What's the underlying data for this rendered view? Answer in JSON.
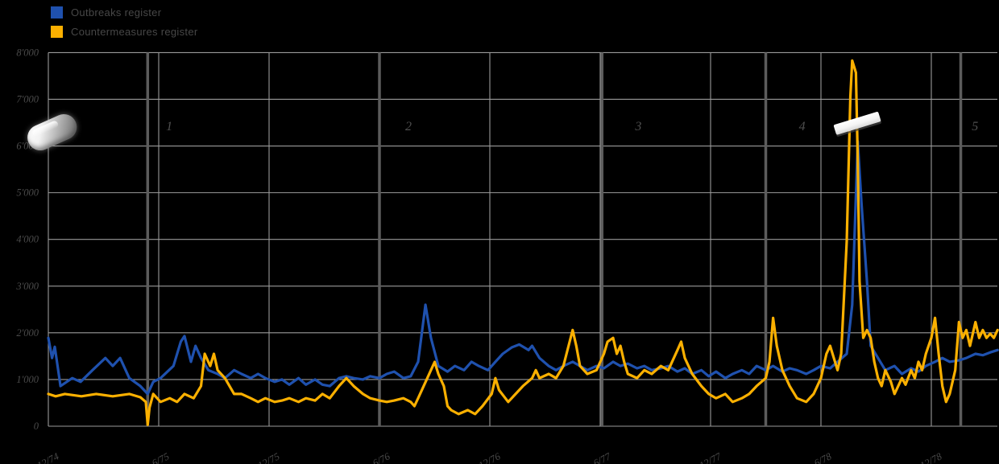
{
  "legend": {
    "items": [
      {
        "label": "Outbreaks register",
        "color": "#1F51AE"
      },
      {
        "label": "Countermeasures register",
        "color": "#FBB000"
      }
    ]
  },
  "colors": {
    "background": "#000000",
    "grid": "#9A9A9A",
    "annotation_line": "#5C5C5C",
    "tick_text": "#4A4A4A",
    "series_blue": "#1F51AE",
    "series_yellow": "#FBB000"
  },
  "chart_data": {
    "type": "line",
    "title": "",
    "xlabel": "",
    "ylabel": "",
    "x_unit": "months since 12/74",
    "x_axis": {
      "tick_months": [
        0,
        6,
        12,
        18,
        24,
        30,
        36,
        42,
        48
      ],
      "tick_labels": [
        "12/74",
        "6/75",
        "12/75",
        "6/76",
        "12/76",
        "6/77",
        "12/77",
        "6/78",
        "12/78"
      ]
    },
    "y_axis": {
      "min": 0,
      "max": 8000,
      "step": 1000,
      "tick_values": [
        0,
        1000,
        2000,
        3000,
        4000,
        5000,
        6000,
        7000,
        8000
      ],
      "tick_labels": [
        "0",
        "1'000",
        "2'000",
        "3'000",
        "4'000",
        "5'000",
        "6'000",
        "7'000",
        "8'000"
      ]
    },
    "grid": true,
    "legend_position": "top-left",
    "annotations": {
      "events": [
        {
          "label": "1",
          "line_month": 5.4,
          "label_month": 6.4
        },
        {
          "label": "2",
          "line_month": 18.0,
          "label_month": 19.4
        },
        {
          "label": "3",
          "line_month": 30.1,
          "label_month": 31.9
        },
        {
          "label": "4",
          "line_month": 39.0,
          "label_month": 40.8
        },
        {
          "label": "5",
          "line_month": 49.6,
          "label_month": 50.2
        }
      ],
      "icons": [
        {
          "name": "pill-icon",
          "month": 0.6,
          "value": 6300
        },
        {
          "name": "white-bar-icon",
          "month": 43.0,
          "value": 6300
        }
      ]
    },
    "series": [
      {
        "name": "Outbreaks register",
        "color": "#1F51AE",
        "points": [
          [
            0,
            1890
          ],
          [
            0.2,
            1460
          ],
          [
            0.35,
            1700
          ],
          [
            0.66,
            860
          ],
          [
            1.3,
            1030
          ],
          [
            1.75,
            950
          ],
          [
            2.4,
            1200
          ],
          [
            3.1,
            1460
          ],
          [
            3.5,
            1290
          ],
          [
            3.9,
            1460
          ],
          [
            4.4,
            1030
          ],
          [
            5.0,
            860
          ],
          [
            5.4,
            690
          ],
          [
            5.7,
            950
          ],
          [
            6.1,
            1030
          ],
          [
            6.8,
            1290
          ],
          [
            7.2,
            1810
          ],
          [
            7.4,
            1930
          ],
          [
            7.75,
            1380
          ],
          [
            8.0,
            1720
          ],
          [
            8.3,
            1460
          ],
          [
            8.7,
            1200
          ],
          [
            9.2,
            1120
          ],
          [
            9.6,
            1030
          ],
          [
            10.1,
            1200
          ],
          [
            10.5,
            1120
          ],
          [
            11.0,
            1030
          ],
          [
            11.4,
            1120
          ],
          [
            11.8,
            1030
          ],
          [
            12.3,
            950
          ],
          [
            12.7,
            1000
          ],
          [
            13.1,
            890
          ],
          [
            13.6,
            1030
          ],
          [
            14.0,
            890
          ],
          [
            14.5,
            1000
          ],
          [
            14.9,
            890
          ],
          [
            15.3,
            860
          ],
          [
            15.8,
            1030
          ],
          [
            16.2,
            1070
          ],
          [
            16.6,
            1030
          ],
          [
            17.1,
            1000
          ],
          [
            17.5,
            1070
          ],
          [
            18.0,
            1030
          ],
          [
            18.4,
            1120
          ],
          [
            18.8,
            1170
          ],
          [
            19.3,
            1030
          ],
          [
            19.7,
            1070
          ],
          [
            20.1,
            1380
          ],
          [
            20.5,
            2600
          ],
          [
            20.8,
            1890
          ],
          [
            21.2,
            1290
          ],
          [
            21.7,
            1170
          ],
          [
            22.1,
            1290
          ],
          [
            22.6,
            1200
          ],
          [
            23.0,
            1380
          ],
          [
            23.4,
            1290
          ],
          [
            23.9,
            1200
          ],
          [
            24.3,
            1380
          ],
          [
            24.7,
            1550
          ],
          [
            25.2,
            1690
          ],
          [
            25.6,
            1750
          ],
          [
            26.1,
            1630
          ],
          [
            26.3,
            1720
          ],
          [
            26.7,
            1460
          ],
          [
            27.2,
            1290
          ],
          [
            27.6,
            1200
          ],
          [
            28.0,
            1290
          ],
          [
            28.5,
            1380
          ],
          [
            28.9,
            1290
          ],
          [
            29.3,
            1200
          ],
          [
            29.8,
            1290
          ],
          [
            30.2,
            1240
          ],
          [
            30.7,
            1380
          ],
          [
            31.1,
            1290
          ],
          [
            31.5,
            1340
          ],
          [
            32.0,
            1240
          ],
          [
            32.4,
            1290
          ],
          [
            32.8,
            1200
          ],
          [
            33.3,
            1240
          ],
          [
            33.7,
            1290
          ],
          [
            34.2,
            1170
          ],
          [
            34.6,
            1240
          ],
          [
            35.0,
            1120
          ],
          [
            35.5,
            1200
          ],
          [
            35.9,
            1070
          ],
          [
            36.3,
            1170
          ],
          [
            36.8,
            1030
          ],
          [
            37.2,
            1120
          ],
          [
            37.7,
            1200
          ],
          [
            38.1,
            1120
          ],
          [
            38.5,
            1290
          ],
          [
            39.0,
            1200
          ],
          [
            39.4,
            1290
          ],
          [
            39.9,
            1170
          ],
          [
            40.3,
            1240
          ],
          [
            40.7,
            1200
          ],
          [
            41.2,
            1120
          ],
          [
            41.6,
            1200
          ],
          [
            42.0,
            1290
          ],
          [
            42.5,
            1240
          ],
          [
            42.9,
            1380
          ],
          [
            43.4,
            1550
          ],
          [
            43.7,
            2600
          ],
          [
            44.0,
            6100
          ],
          [
            44.2,
            4800
          ],
          [
            44.5,
            3100
          ],
          [
            44.7,
            1720
          ],
          [
            45.1,
            1460
          ],
          [
            45.5,
            1200
          ],
          [
            46.0,
            1290
          ],
          [
            46.4,
            1120
          ],
          [
            46.9,
            1240
          ],
          [
            47.3,
            1170
          ],
          [
            47.7,
            1290
          ],
          [
            48.2,
            1380
          ],
          [
            48.6,
            1460
          ],
          [
            49.0,
            1380
          ],
          [
            49.5,
            1410
          ],
          [
            49.9,
            1460
          ],
          [
            50.4,
            1550
          ],
          [
            50.8,
            1520
          ],
          [
            51.2,
            1580
          ],
          [
            51.6,
            1630
          ]
        ]
      },
      {
        "name": "Countermeasures register",
        "color": "#FBB000",
        "points": [
          [
            0,
            690
          ],
          [
            0.4,
            640
          ],
          [
            0.9,
            690
          ],
          [
            1.8,
            640
          ],
          [
            2.6,
            690
          ],
          [
            3.5,
            640
          ],
          [
            4.4,
            690
          ],
          [
            5.0,
            620
          ],
          [
            5.3,
            520
          ],
          [
            5.4,
            30
          ],
          [
            5.5,
            400
          ],
          [
            5.7,
            690
          ],
          [
            6.1,
            520
          ],
          [
            6.6,
            600
          ],
          [
            7.0,
            520
          ],
          [
            7.4,
            690
          ],
          [
            7.9,
            600
          ],
          [
            8.3,
            860
          ],
          [
            8.5,
            1550
          ],
          [
            8.8,
            1290
          ],
          [
            9.0,
            1550
          ],
          [
            9.2,
            1200
          ],
          [
            9.6,
            1030
          ],
          [
            10.1,
            690
          ],
          [
            10.5,
            690
          ],
          [
            11.0,
            600
          ],
          [
            11.4,
            520
          ],
          [
            11.8,
            600
          ],
          [
            12.3,
            520
          ],
          [
            12.7,
            550
          ],
          [
            13.1,
            600
          ],
          [
            13.6,
            520
          ],
          [
            14.0,
            600
          ],
          [
            14.5,
            550
          ],
          [
            14.9,
            690
          ],
          [
            15.3,
            600
          ],
          [
            15.8,
            860
          ],
          [
            16.2,
            1030
          ],
          [
            16.6,
            860
          ],
          [
            17.1,
            690
          ],
          [
            17.5,
            600
          ],
          [
            18.0,
            550
          ],
          [
            18.4,
            520
          ],
          [
            18.8,
            550
          ],
          [
            19.3,
            600
          ],
          [
            19.7,
            520
          ],
          [
            19.9,
            430
          ],
          [
            20.1,
            600
          ],
          [
            20.6,
            1030
          ],
          [
            21.0,
            1375
          ],
          [
            21.2,
            1120
          ],
          [
            21.5,
            860
          ],
          [
            21.7,
            430
          ],
          [
            21.9,
            345
          ],
          [
            22.3,
            260
          ],
          [
            22.8,
            345
          ],
          [
            23.2,
            260
          ],
          [
            23.6,
            430
          ],
          [
            24.1,
            690
          ],
          [
            24.3,
            1030
          ],
          [
            24.5,
            775
          ],
          [
            25.0,
            520
          ],
          [
            25.4,
            690
          ],
          [
            25.8,
            860
          ],
          [
            26.3,
            1030
          ],
          [
            26.5,
            1200
          ],
          [
            26.7,
            1030
          ],
          [
            27.2,
            1120
          ],
          [
            27.6,
            1030
          ],
          [
            28.0,
            1290
          ],
          [
            28.5,
            2060
          ],
          [
            28.7,
            1720
          ],
          [
            28.9,
            1290
          ],
          [
            29.3,
            1120
          ],
          [
            29.8,
            1200
          ],
          [
            30.2,
            1550
          ],
          [
            30.4,
            1810
          ],
          [
            30.7,
            1890
          ],
          [
            30.9,
            1550
          ],
          [
            31.1,
            1720
          ],
          [
            31.3,
            1380
          ],
          [
            31.5,
            1120
          ],
          [
            32.0,
            1030
          ],
          [
            32.4,
            1200
          ],
          [
            32.8,
            1120
          ],
          [
            33.3,
            1290
          ],
          [
            33.7,
            1200
          ],
          [
            34.2,
            1630
          ],
          [
            34.4,
            1810
          ],
          [
            34.6,
            1460
          ],
          [
            35.0,
            1120
          ],
          [
            35.5,
            860
          ],
          [
            35.9,
            690
          ],
          [
            36.3,
            600
          ],
          [
            36.8,
            690
          ],
          [
            37.2,
            520
          ],
          [
            37.7,
            600
          ],
          [
            38.1,
            690
          ],
          [
            38.5,
            860
          ],
          [
            39.0,
            1030
          ],
          [
            39.2,
            1380
          ],
          [
            39.4,
            2320
          ],
          [
            39.6,
            1720
          ],
          [
            39.9,
            1200
          ],
          [
            40.3,
            860
          ],
          [
            40.7,
            600
          ],
          [
            41.2,
            520
          ],
          [
            41.6,
            690
          ],
          [
            42.0,
            1030
          ],
          [
            42.3,
            1550
          ],
          [
            42.5,
            1720
          ],
          [
            42.7,
            1460
          ],
          [
            42.9,
            1200
          ],
          [
            43.1,
            1550
          ],
          [
            43.4,
            3960
          ],
          [
            43.6,
            7050
          ],
          [
            43.7,
            7830
          ],
          [
            43.9,
            7570
          ],
          [
            44.0,
            5680
          ],
          [
            44.1,
            3100
          ],
          [
            44.3,
            1890
          ],
          [
            44.5,
            2060
          ],
          [
            44.7,
            1890
          ],
          [
            44.9,
            1380
          ],
          [
            45.1,
            1030
          ],
          [
            45.3,
            860
          ],
          [
            45.5,
            1200
          ],
          [
            45.8,
            950
          ],
          [
            46.0,
            690
          ],
          [
            46.2,
            860
          ],
          [
            46.4,
            1030
          ],
          [
            46.6,
            890
          ],
          [
            46.9,
            1200
          ],
          [
            47.1,
            1030
          ],
          [
            47.3,
            1380
          ],
          [
            47.5,
            1200
          ],
          [
            47.7,
            1550
          ],
          [
            48.0,
            1890
          ],
          [
            48.2,
            2320
          ],
          [
            48.4,
            1550
          ],
          [
            48.6,
            860
          ],
          [
            48.8,
            520
          ],
          [
            49.0,
            690
          ],
          [
            49.3,
            1200
          ],
          [
            49.5,
            2230
          ],
          [
            49.7,
            1890
          ],
          [
            49.9,
            2060
          ],
          [
            50.1,
            1720
          ],
          [
            50.4,
            2230
          ],
          [
            50.6,
            1890
          ],
          [
            50.8,
            2060
          ],
          [
            51.0,
            1890
          ],
          [
            51.2,
            1980
          ],
          [
            51.4,
            1890
          ],
          [
            51.6,
            2060
          ]
        ]
      }
    ]
  }
}
